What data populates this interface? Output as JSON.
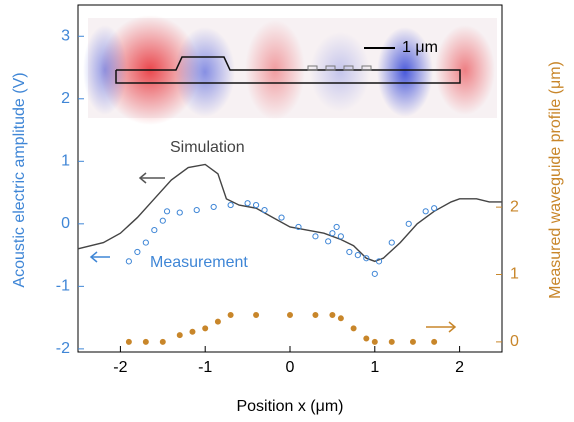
{
  "chart_data": {
    "type": "line",
    "xlabel": "Position x (μm)",
    "ylabel": "Acoustic electric amplitude (V)",
    "y2label": "Measured waveguide profile (μm)",
    "inset_scale_label": "1 μm",
    "xlim": [
      -2.5,
      2.5
    ],
    "xticks": [
      -2,
      -1,
      0,
      1,
      2
    ],
    "ylim": [
      -2.05,
      3.5
    ],
    "yticks": [
      -2,
      -1,
      0,
      1,
      2,
      3
    ],
    "y2lim": [
      -0.15,
      5
    ],
    "y2ticks": [
      0,
      1,
      2
    ],
    "ycolor": "#3f86d6",
    "y2color": "#c8862a",
    "series": [
      {
        "name": "Simulation",
        "mode": "line",
        "color": "#444444",
        "x": [
          -2.5,
          -2.2,
          -2,
          -1.8,
          -1.6,
          -1.4,
          -1.2,
          -1.0,
          -0.85,
          -0.75,
          -0.6,
          -0.4,
          -0.2,
          0,
          0.2,
          0.4,
          0.6,
          0.75,
          0.9,
          1.0,
          1.1,
          1.3,
          1.5,
          1.7,
          1.9,
          2.0,
          2.2,
          2.35,
          2.5
        ],
        "values": [
          -0.4,
          -0.3,
          -0.15,
          0.1,
          0.4,
          0.7,
          0.9,
          0.95,
          0.8,
          0.4,
          0.3,
          0.25,
          0.1,
          -0.05,
          -0.1,
          -0.15,
          -0.25,
          -0.35,
          -0.55,
          -0.6,
          -0.55,
          -0.3,
          0,
          0.2,
          0.35,
          0.4,
          0.4,
          0.35,
          0.35
        ]
      },
      {
        "name": "Measurement",
        "mode": "scatter",
        "color": "#3f86d6",
        "x": [
          -1.9,
          -1.8,
          -1.7,
          -1.6,
          -1.5,
          -1.45,
          -1.3,
          -1.1,
          -0.9,
          -0.7,
          -0.5,
          -0.4,
          -0.3,
          -0.1,
          0.1,
          0.3,
          0.45,
          0.5,
          0.55,
          0.6,
          0.7,
          0.8,
          0.9,
          1.0,
          1.05,
          1.2,
          1.4,
          1.6,
          1.7
        ],
        "values": [
          -0.6,
          -0.45,
          -0.3,
          -0.1,
          0.05,
          0.2,
          0.18,
          0.22,
          0.27,
          0.3,
          0.33,
          0.3,
          0.22,
          0.1,
          -0.05,
          -0.2,
          -0.28,
          -0.15,
          -0.05,
          -0.2,
          -0.45,
          -0.5,
          -0.55,
          -0.8,
          -0.6,
          -0.3,
          0,
          0.2,
          0.25
        ]
      },
      {
        "mode": "scatter-filled",
        "axis": "y2",
        "color": "#c8862a",
        "x": [
          -1.9,
          -1.7,
          -1.5,
          -1.3,
          -1.15,
          -1.0,
          -0.85,
          -0.7,
          -0.4,
          0,
          0.3,
          0.5,
          0.6,
          0.75,
          0.9,
          1.0,
          1.2,
          1.45,
          1.7
        ],
        "values": [
          0,
          0,
          0,
          0.1,
          0.15,
          0.2,
          0.3,
          0.4,
          0.4,
          0.4,
          0.4,
          0.4,
          0.35,
          0.2,
          0.05,
          0,
          0,
          0,
          0
        ]
      }
    ]
  }
}
